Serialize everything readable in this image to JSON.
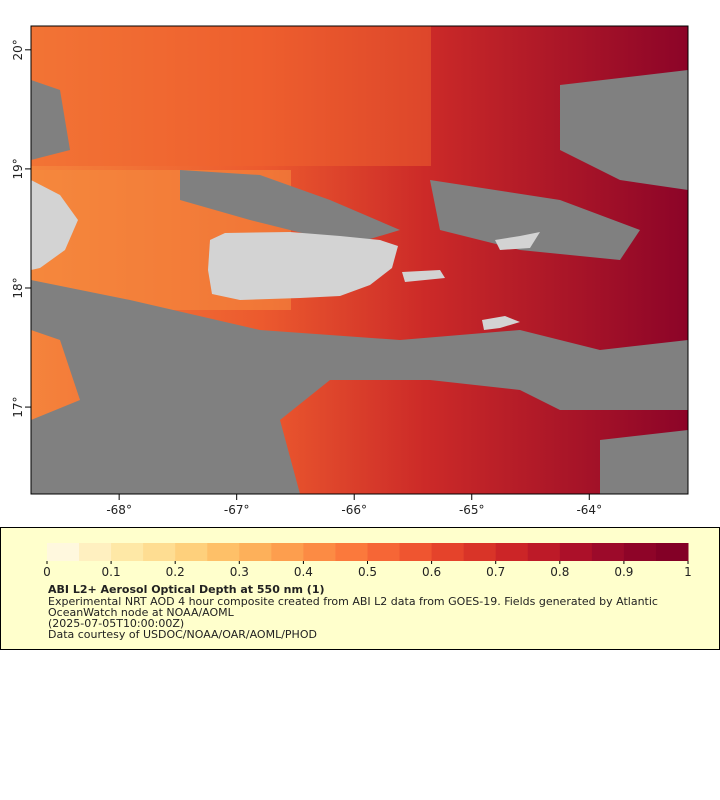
{
  "map_data": {
    "type": "raster-map",
    "xlim": [
      -68.75,
      -63.16
    ],
    "ylim": [
      16.27,
      20.2
    ],
    "xticks": [
      {
        "value": -68,
        "label": "-68°"
      },
      {
        "value": -67,
        "label": "-67°"
      },
      {
        "value": -66,
        "label": "-66°"
      },
      {
        "value": -65,
        "label": "-65°"
      },
      {
        "value": -64,
        "label": "-64°"
      }
    ],
    "yticks": [
      {
        "value": 17,
        "label": "17°"
      },
      {
        "value": 18,
        "label": "18°"
      },
      {
        "value": 19,
        "label": "19°"
      },
      {
        "value": 20,
        "label": "20°"
      }
    ],
    "colorbar": {
      "lim": [
        0,
        1
      ],
      "ticks": [
        0,
        0.1,
        0.2,
        0.3,
        0.4,
        0.5,
        0.6,
        0.7,
        0.8,
        0.9,
        1
      ],
      "colors": [
        "#fff8de",
        "#fff0c0",
        "#fee8a6",
        "#fedd92",
        "#fed07c",
        "#fec068",
        "#fdb05a",
        "#fd9e4e",
        "#fc8b44",
        "#fb793c",
        "#f66636",
        "#ef5530",
        "#e5432b",
        "#d93428",
        "#cc2527",
        "#bd1a28",
        "#ac1029",
        "#9c0a2a",
        "#8e0428",
        "#830026"
      ]
    },
    "title": "ABI L2+ Aerosol Optical Depth at 550 nm (1)",
    "description": "Experimental NRT AOD 4 hour composite created from ABI L2 data from GOES-19. Fields generated by Atlantic OceanWatch node at NOAA/AOML",
    "timestamp": "(2025-07-05T10:00:00Z)",
    "credit": "Data courtesy of USDOC/NOAA/OAR/AOML/PHOD"
  }
}
